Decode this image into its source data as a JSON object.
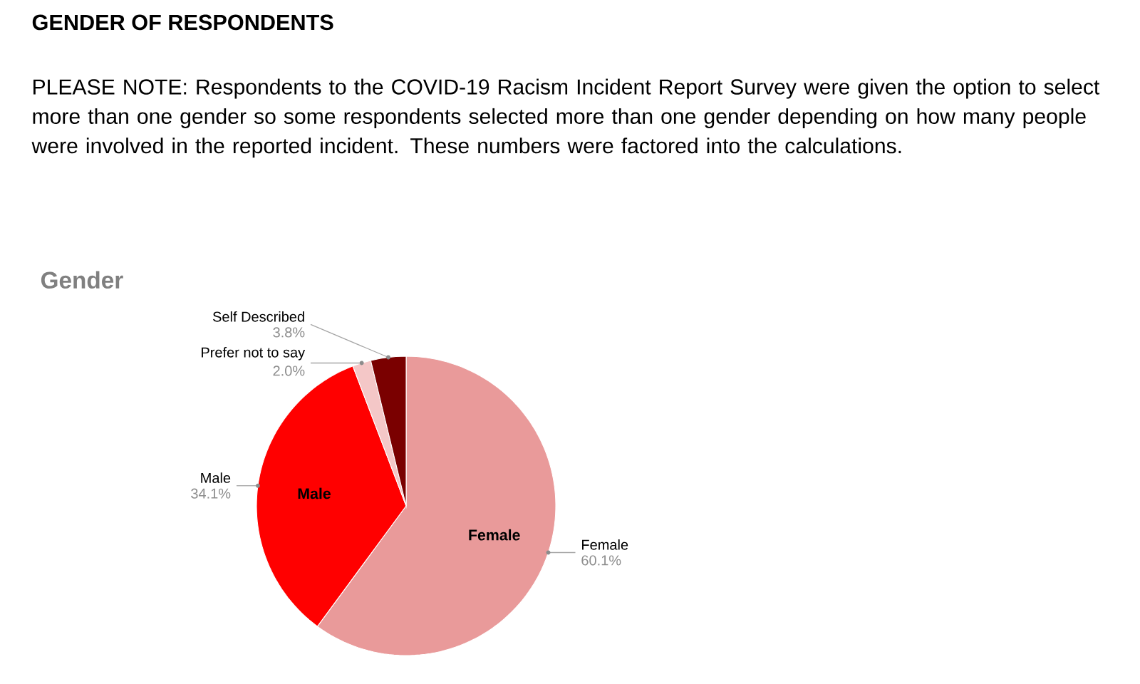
{
  "chart_data": {
    "type": "pie",
    "title": "GENDER OF RESPONDENTS",
    "subtitle": "PLEASE NOTE: Respondents to the COVID-19 Racism Incident Report Survey were given the option to select more than one gender so some respondents selected more than one gender depending on how many people were involved in the reported incident. These numbers were factored into the calculations.",
    "annotations": [
      "Gender"
    ],
    "categories": [
      "Female",
      "Male",
      "Prefer not to say",
      "Self Described"
    ],
    "values": [
      60.1,
      34.1,
      2.0,
      3.8
    ],
    "value_labels": [
      "60.1%",
      "34.1%",
      "2.0%",
      "3.8%"
    ],
    "colors": [
      "#e99a9a",
      "#ff0000",
      "#f4c7c7",
      "#7a0000"
    ]
  }
}
